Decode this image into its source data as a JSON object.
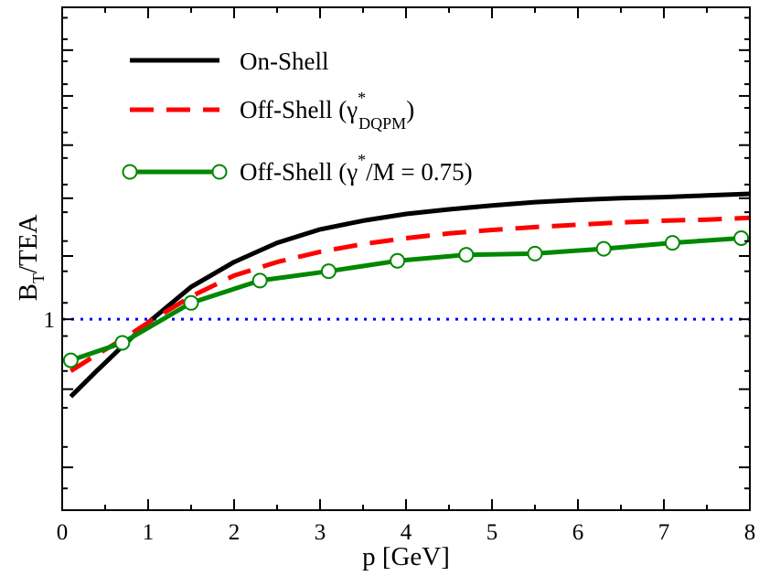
{
  "chart_data": {
    "type": "line",
    "title": "",
    "xlabel": "p [GeV]",
    "ylabel": {
      "main": "B",
      "sub": "T",
      "tail": "/TEA"
    },
    "xlim": [
      0,
      8
    ],
    "ylim": [
      0.75,
      1.6
    ],
    "y_scale": "log",
    "x_ticks": [
      "0",
      "1",
      "2",
      "3",
      "4",
      "5",
      "6",
      "7",
      "8"
    ],
    "y_ticks": [
      "1"
    ],
    "reference_line": {
      "y": 1,
      "style": "dotted",
      "color": "#0000ff"
    },
    "legend": {
      "position": "top-left",
      "entries": [
        {
          "series": 0,
          "label": "On-Shell"
        },
        {
          "series": 1,
          "prefix": "Off-Shell (γ",
          "sup": "*",
          "sub": "DQPM",
          "suffix": ")"
        },
        {
          "series": 2,
          "prefix": "Off-Shell (γ",
          "sup": "*",
          "suffix": "/M = 0.75)"
        }
      ]
    },
    "series": [
      {
        "name": "On-Shell",
        "style": "solid",
        "color": "#000000",
        "x": [
          0.1,
          0.4,
          0.7,
          1.0,
          1.5,
          2.0,
          2.5,
          3.0,
          3.5,
          4.0,
          4.5,
          5.0,
          5.5,
          6.0,
          6.5,
          7.0,
          7.5,
          8.0
        ],
        "y": [
          0.89,
          0.925,
          0.96,
          0.995,
          1.05,
          1.09,
          1.122,
          1.145,
          1.16,
          1.172,
          1.18,
          1.187,
          1.193,
          1.197,
          1.2,
          1.202,
          1.205,
          1.208
        ]
      },
      {
        "name": "Off-Shell (γ*_DQPM)",
        "style": "dashed",
        "color": "#ff0000",
        "x": [
          0.1,
          0.4,
          0.7,
          1.0,
          1.5,
          2.0,
          2.5,
          3.0,
          3.5,
          4.0,
          4.5,
          5.0,
          5.5,
          6.0,
          6.5,
          7.0,
          7.5,
          8.0
        ],
        "y": [
          0.925,
          0.948,
          0.97,
          0.995,
          1.035,
          1.068,
          1.09,
          1.107,
          1.12,
          1.13,
          1.138,
          1.144,
          1.149,
          1.153,
          1.157,
          1.16,
          1.162,
          1.165
        ]
      },
      {
        "name": "Off-Shell (γ*/M = 0.75)",
        "style": "solid",
        "color": "#008800",
        "marker": "open-circle",
        "x": [
          0.1,
          0.7,
          1.5,
          2.3,
          3.1,
          3.9,
          4.7,
          5.5,
          6.3,
          7.1,
          7.9
        ],
        "y": [
          0.94,
          0.965,
          1.025,
          1.06,
          1.075,
          1.092,
          1.102,
          1.104,
          1.112,
          1.122,
          1.13
        ]
      }
    ]
  }
}
